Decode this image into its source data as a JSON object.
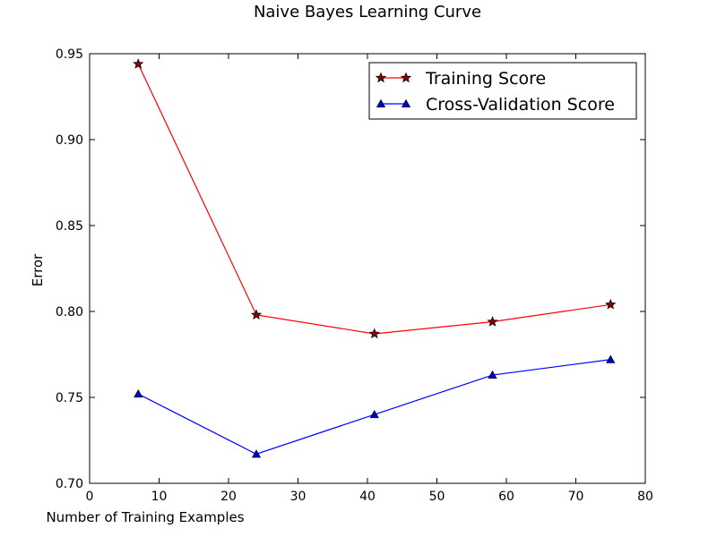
{
  "chart_data": {
    "type": "line",
    "title": "Naive Bayes Learning Curve",
    "xlabel": "Number of Training Examples",
    "ylabel": "Error",
    "xlim": [
      0,
      80
    ],
    "ylim": [
      0.7,
      0.95
    ],
    "xticks": [
      "0",
      "10",
      "20",
      "30",
      "40",
      "50",
      "60",
      "70",
      "80"
    ],
    "yticks": [
      "0.70",
      "0.75",
      "0.80",
      "0.85",
      "0.90",
      "0.95"
    ],
    "grid": false,
    "legend_position": "top-right",
    "x": [
      7,
      24,
      41,
      58,
      75
    ],
    "series": [
      {
        "name": "Training Score",
        "values": [
          0.944,
          0.798,
          0.787,
          0.794,
          0.804
        ],
        "color": "#ff0000",
        "marker": "star",
        "marker_fill": "#8b0000"
      },
      {
        "name": "Cross-Validation Score",
        "values": [
          0.752,
          0.717,
          0.74,
          0.763,
          0.772
        ],
        "color": "#0000ff",
        "marker": "triangle",
        "marker_fill": "#0000cc"
      }
    ]
  }
}
